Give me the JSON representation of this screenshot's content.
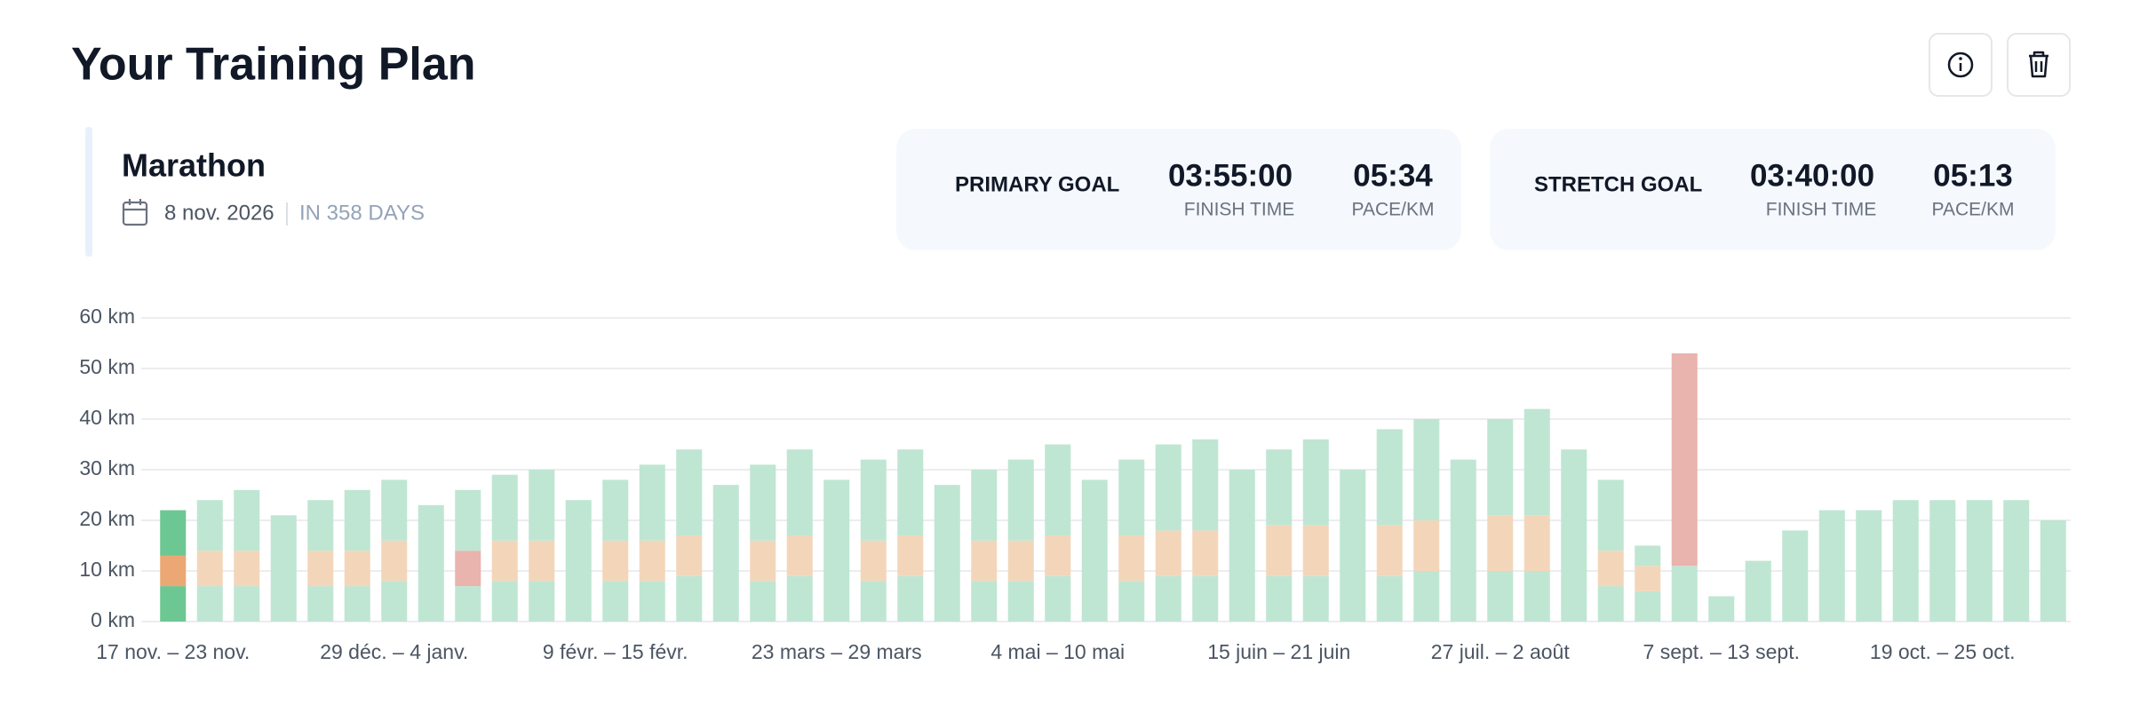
{
  "header": {
    "title": "Your Training Plan"
  },
  "race": {
    "name": "Marathon",
    "date": "8 nov. 2026",
    "countdown": "IN 358 DAYS"
  },
  "goals": [
    {
      "label": "PRIMARY GOAL",
      "finish_time": "03:55:00",
      "finish_label": "FINISH TIME",
      "pace": "05:34",
      "pace_label": "PACE/KM"
    },
    {
      "label": "STRETCH GOAL",
      "finish_time": "03:40:00",
      "finish_label": "FINISH TIME",
      "pace": "05:13",
      "pace_label": "PACE/KM"
    }
  ],
  "chart_data": {
    "type": "stacked_bar",
    "categories": [
      "17 nov. – 23 nov.",
      null,
      null,
      null,
      null,
      null,
      "29 déc. – 4 janv.",
      null,
      null,
      null,
      null,
      null,
      "9 févr. – 15 févr.",
      null,
      null,
      null,
      null,
      null,
      "23 mars – 29 mars",
      null,
      null,
      null,
      null,
      null,
      "4 mai – 10 mai",
      null,
      null,
      null,
      null,
      null,
      "15 juin – 21 juin",
      null,
      null,
      null,
      null,
      null,
      "27 juil. – 2 août",
      null,
      null,
      null,
      null,
      null,
      "7 sept. – 13 sept.",
      null,
      null,
      null,
      null,
      null,
      "19 oct. – 25 oct.",
      null,
      null,
      null
    ],
    "series": [
      {
        "color": "#bfe6d3",
        "highlight_color": "#6dc792",
        "values": [
          7,
          7,
          7,
          21,
          7,
          7,
          8,
          23,
          7,
          8,
          8,
          24,
          8,
          8,
          9,
          27,
          8,
          9,
          28,
          8,
          9,
          27,
          8,
          8,
          9,
          28,
          8,
          9,
          9,
          30,
          9,
          9,
          30,
          9,
          10,
          32,
          10,
          10,
          34,
          7,
          6,
          11,
          5,
          12,
          18,
          22,
          22,
          24,
          24,
          24,
          24,
          20
        ]
      },
      {
        "color": "#f3d6ba",
        "highlight_color": "#eba875",
        "values": [
          6,
          7,
          7,
          null,
          7,
          7,
          8,
          null,
          null,
          8,
          8,
          null,
          8,
          8,
          8,
          null,
          8,
          8,
          null,
          8,
          8,
          null,
          8,
          8,
          8,
          null,
          9,
          9,
          9,
          null,
          10,
          10,
          null,
          10,
          10,
          null,
          11,
          11,
          null,
          7,
          5,
          null,
          null,
          null,
          null,
          null,
          null,
          null,
          null,
          null,
          null,
          null
        ]
      },
      {
        "color": "#e9b3ae",
        "highlight_color": "#e07e77",
        "values": [
          null,
          null,
          null,
          null,
          null,
          null,
          null,
          null,
          7,
          null,
          null,
          null,
          null,
          null,
          null,
          null,
          null,
          null,
          null,
          null,
          null,
          null,
          null,
          null,
          null,
          null,
          null,
          null,
          null,
          null,
          null,
          null,
          null,
          null,
          null,
          null,
          null,
          null,
          null,
          null,
          null,
          42,
          null,
          null,
          null,
          null,
          null,
          null,
          null,
          null,
          null,
          null
        ]
      },
      {
        "color": "#bfe6d3",
        "highlight_color": "#6dc792",
        "values": [
          9,
          10,
          12,
          null,
          10,
          12,
          12,
          null,
          12,
          13,
          14,
          null,
          12,
          15,
          17,
          null,
          15,
          17,
          null,
          16,
          17,
          null,
          14,
          16,
          18,
          null,
          15,
          17,
          18,
          null,
          15,
          17,
          null,
          19,
          20,
          null,
          19,
          21,
          null,
          14,
          4,
          null,
          null,
          null,
          null,
          null,
          null,
          null,
          null,
          null,
          null,
          null
        ]
      }
    ],
    "highlight_index": 0,
    "ylim": [
      0,
      60
    ],
    "yticks": [
      {
        "value": 0,
        "label": "0 km"
      },
      {
        "value": 10,
        "label": "10 km"
      },
      {
        "value": 20,
        "label": "20 km"
      },
      {
        "value": 30,
        "label": "30 km"
      },
      {
        "value": 40,
        "label": "40 km"
      },
      {
        "value": 50,
        "label": "50 km"
      },
      {
        "value": 60,
        "label": "60 km"
      }
    ],
    "grid": true
  }
}
